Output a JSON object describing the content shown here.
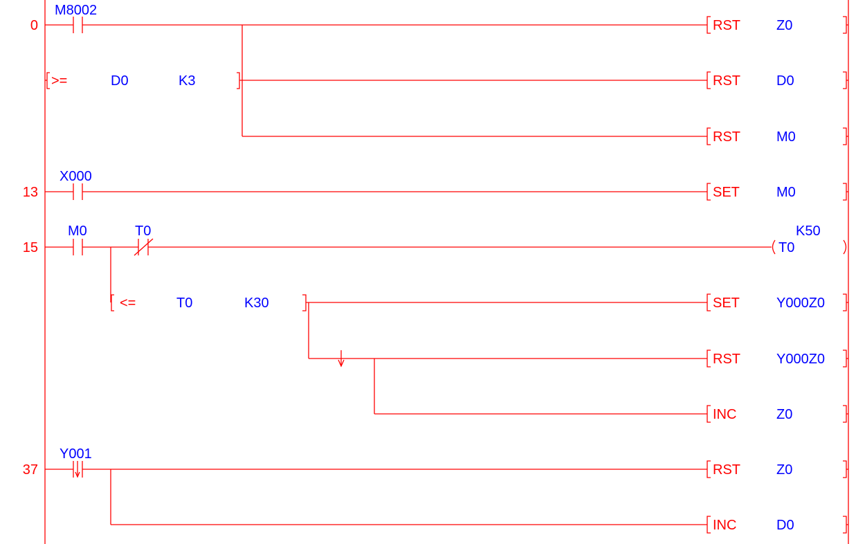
{
  "colors": {
    "wire": "#ff0000",
    "operand": "#0000ff",
    "step": "#ff0000"
  },
  "rungs": [
    {
      "step": "0",
      "contact": "M8002",
      "contact_type": "normally-open",
      "compare": {
        "op": ">=",
        "a": "D0",
        "b": "K3"
      },
      "outputs": [
        {
          "instr": "RST",
          "operand": "Z0"
        },
        {
          "instr": "RST",
          "operand": "D0"
        },
        {
          "instr": "RST",
          "operand": "M0"
        }
      ]
    },
    {
      "step": "13",
      "contact": "X000",
      "contact_type": "normally-open",
      "outputs": [
        {
          "instr": "SET",
          "operand": "M0"
        }
      ]
    },
    {
      "step": "15",
      "contacts": [
        {
          "label": "M0",
          "type": "normally-open"
        },
        {
          "label": "T0",
          "type": "normally-closed"
        }
      ],
      "coil": {
        "name": "T0",
        "preset": "K50"
      },
      "compare": {
        "op": "<=",
        "a": "T0",
        "b": "K30"
      },
      "outputs": [
        {
          "instr": "SET",
          "operand": "Y000Z0"
        },
        {
          "instr": "RST",
          "operand": "Y000Z0"
        },
        {
          "instr": "INC",
          "operand": "Z0"
        }
      ]
    },
    {
      "step": "37",
      "contact": "Y001",
      "contact_type": "falling-edge",
      "outputs": [
        {
          "instr": "RST",
          "operand": "Z0"
        },
        {
          "instr": "INC",
          "operand": "D0"
        }
      ]
    }
  ]
}
